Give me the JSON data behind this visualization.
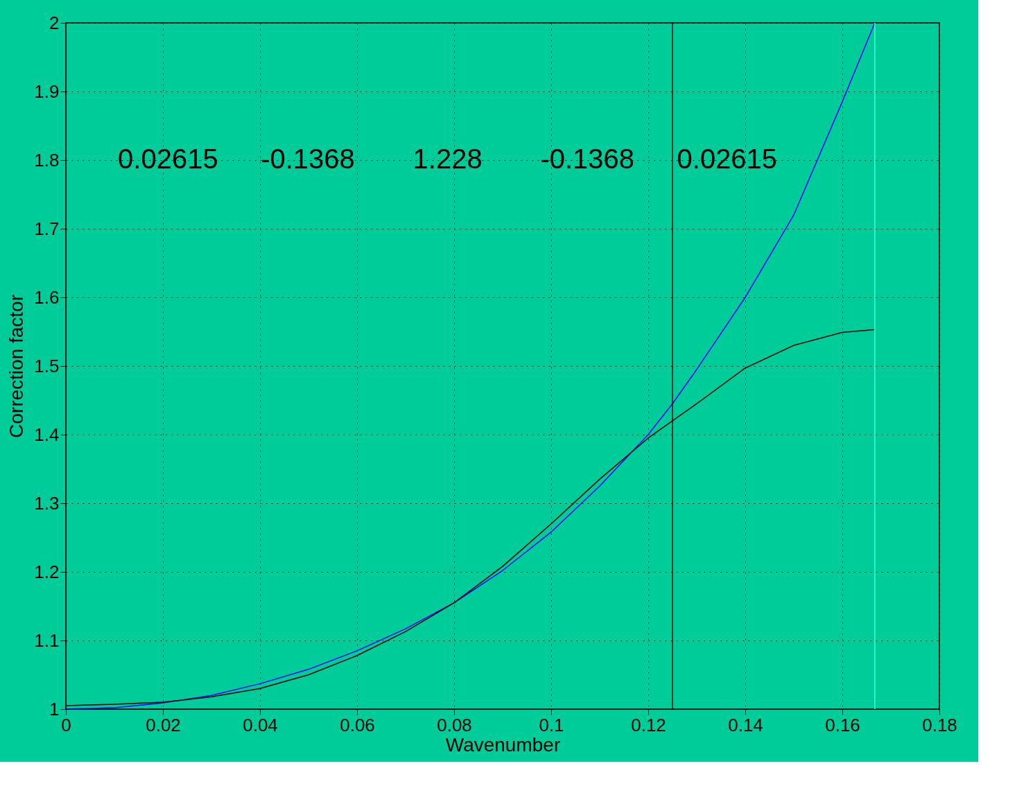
{
  "chart_data": {
    "type": "line",
    "xlabel": "Wavenumber",
    "ylabel": "Correction factor",
    "xlim": [
      0,
      0.18
    ],
    "xticks": [
      0,
      0.02,
      0.04,
      0.06,
      0.08,
      0.1,
      0.12,
      0.14,
      0.16,
      0.18
    ],
    "ylim": [
      1,
      2
    ],
    "yticks": [
      1,
      1.1,
      1.2,
      1.3,
      1.4,
      1.5,
      1.6,
      1.7,
      1.8,
      1.9,
      2
    ],
    "grid": true,
    "line_style": "solid",
    "marker": "none",
    "series": [
      {
        "color": "#0000ff",
        "x": [
          0,
          0.01,
          0.02,
          0.03,
          0.04,
          0.05,
          0.06,
          0.07,
          0.08,
          0.09,
          0.1,
          0.11,
          0.12,
          0.125,
          0.13,
          0.14,
          0.15,
          0.16,
          0.1667
        ],
        "values": [
          1.0,
          1.002,
          1.009,
          1.02,
          1.037,
          1.058,
          1.085,
          1.117,
          1.155,
          1.202,
          1.258,
          1.325,
          1.4,
          1.445,
          1.495,
          1.6,
          1.72,
          1.885,
          2.0
        ]
      },
      {
        "color": "#000000",
        "x": [
          0,
          0.01,
          0.02,
          0.03,
          0.04,
          0.05,
          0.06,
          0.07,
          0.08,
          0.09,
          0.1,
          0.11,
          0.12,
          0.125,
          0.13,
          0.14,
          0.15,
          0.16,
          0.1667
        ],
        "values": [
          1.005,
          1.007,
          1.01,
          1.018,
          1.03,
          1.05,
          1.078,
          1.113,
          1.155,
          1.208,
          1.27,
          1.335,
          1.395,
          1.42,
          1.445,
          1.497,
          1.53,
          1.549,
          1.553
        ]
      }
    ],
    "ref_lines": [
      {
        "axis": "x",
        "value": 0.125,
        "color": "#000000"
      },
      {
        "axis": "x",
        "value": 0.1667,
        "color": "#33ffdd"
      }
    ],
    "annotations": [
      "0.02615",
      "-0.1368",
      "1.228",
      "-0.1368",
      "0.02615"
    ]
  }
}
